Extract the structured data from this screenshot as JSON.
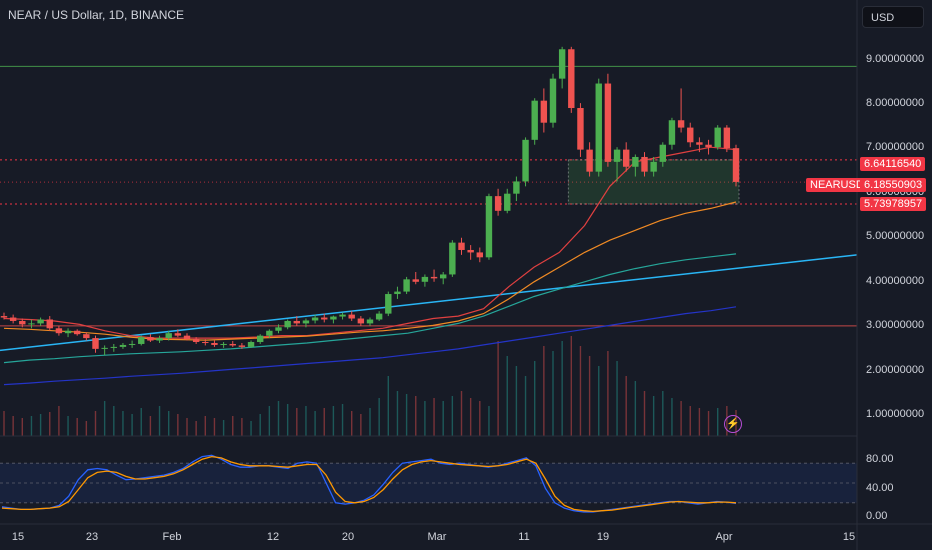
{
  "header": {
    "symbol_title": "NEAR / US Dollar, 1D, BINANCE",
    "currency_label": "USD"
  },
  "price_axis": {
    "labels": [
      "9.00000000",
      "8.00000000",
      "7.00000000",
      "6.00000000",
      "5.00000000",
      "4.00000000",
      "3.00000000",
      "2.00000000",
      "1.00000000"
    ]
  },
  "price_tags": {
    "upper": "6.64116540",
    "symbol_name": "NEARUSD",
    "current": "6.18550903",
    "lower": "5.73978957"
  },
  "stoch_axis": {
    "labels": [
      "80.00",
      "40.00",
      "0.00"
    ]
  },
  "time_axis": {
    "labels": [
      "15",
      "23",
      "Feb",
      "12",
      "20",
      "Mar",
      "11",
      "19",
      "Apr",
      "15"
    ]
  },
  "colors": {
    "background": "#171b26",
    "up_candle": "#26a69a",
    "up_candle_bright": "#4caf50",
    "down_candle": "#ef5350",
    "ma_red": "#e04040",
    "ma_orange": "#f08a24",
    "ma_teal": "#26a69a",
    "ma_blue": "#2434c8",
    "trendline_cyan": "#29b6f6",
    "stoch_k": "#2962ff",
    "stoch_d": "#ff9800"
  },
  "icons": {
    "alert": "bolt-icon"
  },
  "chart_data": {
    "type": "candlestick",
    "symbol": "NEARUSD",
    "interval": "1D",
    "ylim": [
      1.0,
      9.6
    ],
    "price_levels": [
      8.55,
      6.6411654,
      6.18550903,
      5.73978957,
      3.25
    ],
    "zone": {
      "top": 6.6411654,
      "bottom": 5.73978957
    },
    "trendline": {
      "start": 2.75,
      "end": 4.7
    },
    "candles": [
      [
        3.45,
        3.52,
        3.38,
        3.42
      ],
      [
        3.42,
        3.48,
        3.3,
        3.35
      ],
      [
        3.35,
        3.4,
        3.22,
        3.28
      ],
      [
        3.28,
        3.38,
        3.2,
        3.3
      ],
      [
        3.3,
        3.42,
        3.25,
        3.38
      ],
      [
        3.38,
        3.45,
        3.15,
        3.2
      ],
      [
        3.2,
        3.25,
        3.05,
        3.1
      ],
      [
        3.1,
        3.2,
        3.02,
        3.15
      ],
      [
        3.15,
        3.18,
        3.05,
        3.08
      ],
      [
        3.08,
        3.12,
        2.95,
        3.0
      ],
      [
        3.0,
        3.05,
        2.7,
        2.78
      ],
      [
        2.78,
        2.85,
        2.65,
        2.8
      ],
      [
        2.8,
        2.88,
        2.72,
        2.82
      ],
      [
        2.82,
        2.9,
        2.78,
        2.86
      ],
      [
        2.86,
        2.95,
        2.8,
        2.88
      ],
      [
        2.88,
        3.05,
        2.85,
        3.02
      ],
      [
        3.02,
        3.08,
        2.92,
        2.95
      ],
      [
        2.95,
        3.05,
        2.9,
        3.0
      ],
      [
        3.0,
        3.15,
        2.95,
        3.1
      ],
      [
        3.1,
        3.18,
        3.02,
        3.05
      ],
      [
        3.05,
        3.1,
        2.95,
        2.98
      ],
      [
        2.98,
        3.02,
        2.88,
        2.92
      ],
      [
        2.92,
        2.98,
        2.85,
        2.9
      ],
      [
        2.9,
        2.95,
        2.82,
        2.86
      ],
      [
        2.86,
        2.92,
        2.8,
        2.88
      ],
      [
        2.88,
        2.94,
        2.82,
        2.85
      ],
      [
        2.85,
        2.9,
        2.78,
        2.82
      ],
      [
        2.82,
        2.95,
        2.8,
        2.92
      ],
      [
        2.92,
        3.08,
        2.88,
        3.05
      ],
      [
        3.05,
        3.18,
        3.0,
        3.15
      ],
      [
        3.15,
        3.28,
        3.1,
        3.22
      ],
      [
        3.22,
        3.38,
        3.18,
        3.35
      ],
      [
        3.35,
        3.45,
        3.25,
        3.3
      ],
      [
        3.3,
        3.4,
        3.22,
        3.36
      ],
      [
        3.36,
        3.48,
        3.3,
        3.42
      ],
      [
        3.42,
        3.5,
        3.32,
        3.38
      ],
      [
        3.38,
        3.46,
        3.3,
        3.44
      ],
      [
        3.44,
        3.52,
        3.38,
        3.48
      ],
      [
        3.48,
        3.55,
        3.35,
        3.4
      ],
      [
        3.4,
        3.45,
        3.25,
        3.3
      ],
      [
        3.3,
        3.42,
        3.25,
        3.38
      ],
      [
        3.38,
        3.55,
        3.35,
        3.5
      ],
      [
        3.5,
        3.95,
        3.45,
        3.9
      ],
      [
        3.9,
        4.05,
        3.8,
        3.95
      ],
      [
        3.95,
        4.25,
        3.9,
        4.2
      ],
      [
        4.2,
        4.35,
        4.1,
        4.15
      ],
      [
        4.15,
        4.3,
        4.05,
        4.25
      ],
      [
        4.25,
        4.4,
        4.15,
        4.22
      ],
      [
        4.22,
        4.35,
        4.1,
        4.3
      ],
      [
        4.3,
        5.0,
        4.25,
        4.95
      ],
      [
        4.95,
        5.05,
        4.7,
        4.8
      ],
      [
        4.8,
        4.9,
        4.6,
        4.75
      ],
      [
        4.75,
        4.85,
        4.55,
        4.65
      ],
      [
        4.65,
        5.95,
        4.6,
        5.9
      ],
      [
        5.9,
        6.05,
        5.5,
        5.6
      ],
      [
        5.6,
        6.05,
        5.55,
        5.95
      ],
      [
        5.95,
        6.3,
        5.8,
        6.2
      ],
      [
        6.2,
        7.1,
        6.1,
        7.05
      ],
      [
        7.05,
        7.9,
        6.95,
        7.85
      ],
      [
        7.85,
        8.1,
        7.2,
        7.4
      ],
      [
        7.4,
        8.4,
        7.3,
        8.3
      ],
      [
        8.3,
        8.95,
        8.1,
        8.9
      ],
      [
        8.9,
        8.95,
        7.6,
        7.7
      ],
      [
        7.7,
        7.8,
        6.7,
        6.85
      ],
      [
        6.85,
        7.0,
        6.3,
        6.4
      ],
      [
        6.4,
        8.3,
        6.3,
        8.2
      ],
      [
        8.2,
        8.4,
        6.5,
        6.6
      ],
      [
        6.6,
        6.9,
        6.2,
        6.85
      ],
      [
        6.85,
        7.0,
        6.4,
        6.5
      ],
      [
        6.5,
        6.75,
        6.3,
        6.7
      ],
      [
        6.7,
        6.8,
        6.3,
        6.4
      ],
      [
        6.4,
        6.7,
        6.3,
        6.6
      ],
      [
        6.6,
        7.0,
        6.5,
        6.95
      ],
      [
        6.95,
        7.5,
        6.85,
        7.45
      ],
      [
        7.45,
        8.1,
        7.2,
        7.3
      ],
      [
        7.3,
        7.4,
        6.9,
        7.0
      ],
      [
        7.0,
        7.1,
        6.8,
        6.95
      ],
      [
        6.95,
        7.05,
        6.75,
        6.9
      ],
      [
        6.9,
        7.35,
        6.85,
        7.3
      ],
      [
        7.3,
        7.35,
        6.8,
        6.88
      ],
      [
        6.88,
        6.95,
        6.1,
        6.19
      ]
    ],
    "moving_averages": [
      {
        "name": "red",
        "values": [
          3.4,
          3.38,
          3.35,
          3.28,
          3.15,
          3.05,
          3.0,
          3.0,
          3.0,
          3.0,
          3.02,
          3.05,
          3.05,
          3.1,
          3.15,
          3.2,
          3.3,
          3.4,
          3.45,
          3.6,
          4.05,
          4.45,
          4.75,
          5.3,
          6.1,
          6.6,
          6.7,
          6.8,
          6.9,
          6.85
        ]
      },
      {
        "name": "orange",
        "values": [
          3.2,
          3.18,
          3.15,
          3.12,
          3.08,
          3.02,
          2.98,
          2.97,
          2.96,
          2.98,
          3.0,
          3.02,
          3.04,
          3.08,
          3.12,
          3.15,
          3.2,
          3.26,
          3.35,
          3.5,
          3.8,
          4.15,
          4.45,
          4.75,
          5.0,
          5.2,
          5.4,
          5.55,
          5.65,
          5.78
        ]
      },
      {
        "name": "teal",
        "values": [
          2.5,
          2.55,
          2.58,
          2.62,
          2.65,
          2.68,
          2.7,
          2.72,
          2.75,
          2.78,
          2.82,
          2.86,
          2.9,
          2.95,
          3.0,
          3.05,
          3.1,
          3.2,
          3.3,
          3.45,
          3.65,
          3.85,
          4.0,
          4.15,
          4.3,
          4.42,
          4.52,
          4.6,
          4.66,
          4.72
        ]
      },
      {
        "name": "blue",
        "values": [
          2.05,
          2.08,
          2.12,
          2.15,
          2.18,
          2.22,
          2.25,
          2.28,
          2.32,
          2.36,
          2.4,
          2.44,
          2.48,
          2.52,
          2.56,
          2.6,
          2.66,
          2.72,
          2.78,
          2.86,
          2.94,
          3.02,
          3.1,
          3.18,
          3.26,
          3.34,
          3.42,
          3.5,
          3.56,
          3.64
        ]
      }
    ],
    "volume": [
      0.25,
      0.2,
      0.18,
      0.2,
      0.22,
      0.24,
      0.3,
      0.2,
      0.18,
      0.15,
      0.25,
      0.35,
      0.3,
      0.25,
      0.22,
      0.28,
      0.2,
      0.3,
      0.25,
      0.22,
      0.18,
      0.15,
      0.2,
      0.18,
      0.16,
      0.2,
      0.18,
      0.15,
      0.22,
      0.3,
      0.35,
      0.32,
      0.28,
      0.3,
      0.25,
      0.28,
      0.3,
      0.32,
      0.25,
      0.22,
      0.28,
      0.38,
      0.6,
      0.45,
      0.42,
      0.4,
      0.35,
      0.38,
      0.35,
      0.4,
      0.45,
      0.38,
      0.35,
      0.3,
      0.95,
      0.8,
      0.7,
      0.6,
      0.75,
      0.9,
      0.85,
      0.95,
      1.0,
      0.9,
      0.8,
      0.7,
      0.85,
      0.75,
      0.6,
      0.55,
      0.45,
      0.4,
      0.45,
      0.38,
      0.35,
      0.3,
      0.28,
      0.25,
      0.28,
      0.3,
      0.26
    ],
    "stochastic": {
      "ylim": [
        0,
        100
      ],
      "bands": [
        80,
        50,
        20
      ],
      "k": [
        14,
        12,
        10,
        10,
        11,
        12,
        16,
        30,
        55,
        70,
        72,
        70,
        62,
        55,
        56,
        58,
        60,
        62,
        66,
        72,
        82,
        90,
        92,
        86,
        78,
        74,
        74,
        76,
        76,
        74,
        72,
        80,
        82,
        80,
        50,
        20,
        18,
        20,
        24,
        32,
        48,
        66,
        80,
        82,
        84,
        86,
        80,
        78,
        80,
        78,
        76,
        74,
        76,
        80,
        84,
        88,
        76,
        42,
        20,
        12,
        8,
        6,
        6,
        8,
        10,
        12,
        14,
        16,
        18,
        20,
        22,
        22,
        20,
        18,
        20,
        22,
        21,
        19
      ],
      "d": [
        12,
        11,
        10,
        10,
        11,
        12,
        14,
        22,
        40,
        58,
        66,
        68,
        66,
        60,
        56,
        56,
        58,
        60,
        64,
        70,
        78,
        86,
        90,
        88,
        82,
        78,
        76,
        76,
        76,
        75,
        74,
        76,
        78,
        78,
        62,
        36,
        22,
        20,
        22,
        28,
        40,
        56,
        70,
        78,
        82,
        84,
        82,
        80,
        78,
        77,
        76,
        75,
        76,
        78,
        82,
        86,
        80,
        56,
        30,
        16,
        10,
        8,
        7,
        8,
        9,
        11,
        13,
        15,
        17,
        19,
        21,
        22,
        21,
        20,
        20,
        21,
        21,
        20
      ]
    }
  }
}
